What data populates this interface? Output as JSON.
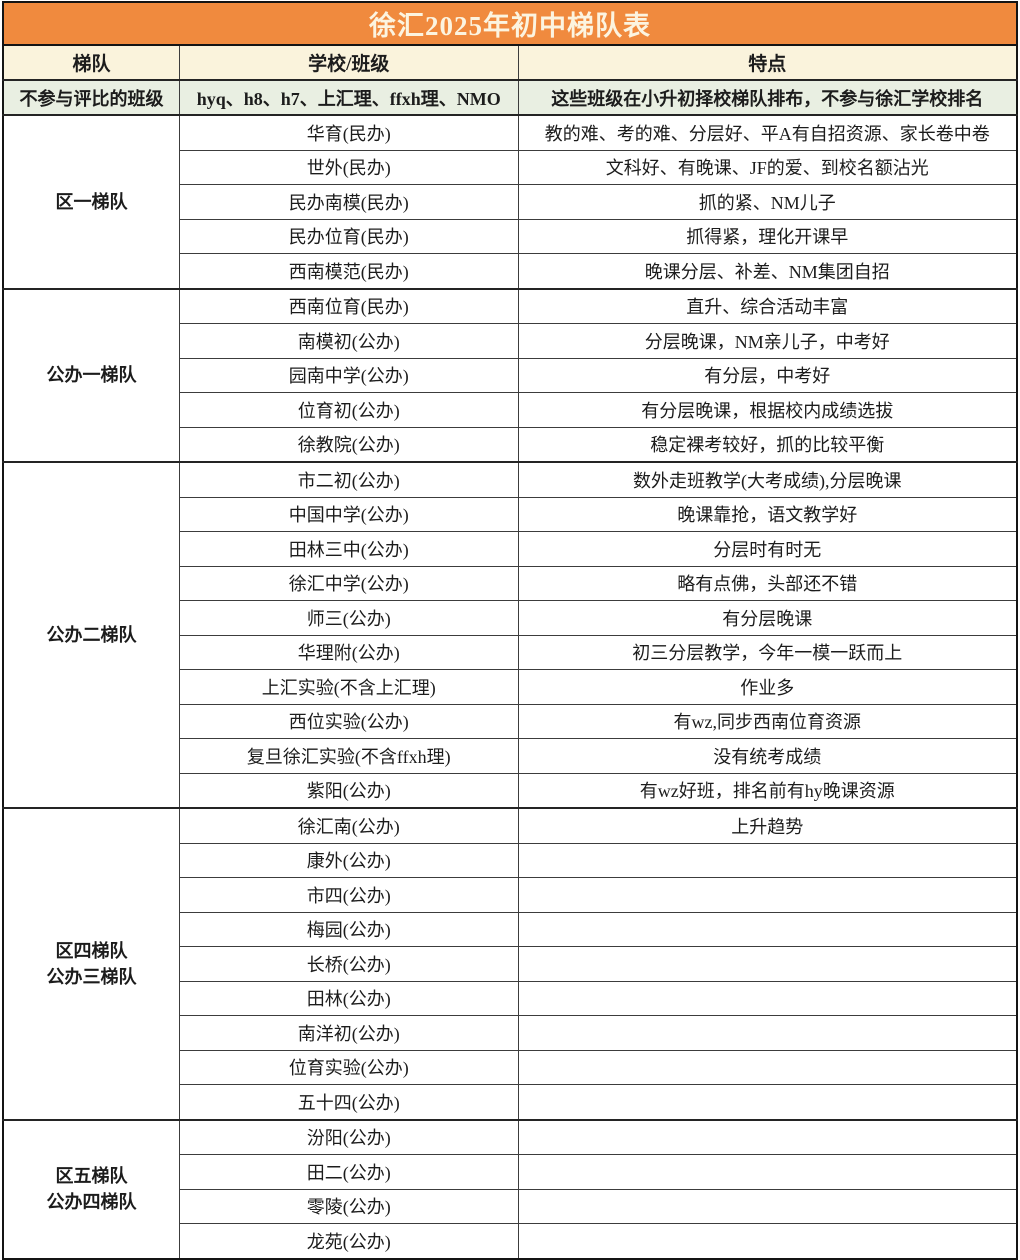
{
  "title": "徐汇2025年初中梯队表",
  "colors": {
    "title_bg": "#F08A3E",
    "title_text": "#FCF4E0",
    "header_bg": "#FAF3DC",
    "special_row_bg": "#E9EFE2",
    "body_bg": "#FFFFFF",
    "border": "#3C3C3C"
  },
  "columns": [
    "梯队",
    "学校/班级",
    "特点"
  ],
  "special_row": {
    "tier": "不参与评比的班级",
    "school": "hyq、h8、h7、上汇理、ffxh理、NMO",
    "feature": "这些班级在小升初择校梯队排布，不参与徐汇学校排名"
  },
  "groups": [
    {
      "tier": "区一梯队",
      "rows": [
        [
          "华育(民办)",
          "教的难、考的难、分层好、平A有自招资源、家长卷中卷"
        ],
        [
          "世外(民办)",
          "文科好、有晚课、JF的爱、到校名额沾光"
        ],
        [
          "民办南模(民办)",
          "抓的紧、NM儿子"
        ],
        [
          "民办位育(民办)",
          "抓得紧，理化开课早"
        ],
        [
          "西南模范(民办)",
          "晚课分层、补差、NM集团自招"
        ]
      ]
    },
    {
      "tier": "公办一梯队",
      "rows": [
        [
          "西南位育(民办)",
          "直升、综合活动丰富"
        ],
        [
          "南模初(公办)",
          "分层晚课，NM亲儿子，中考好"
        ],
        [
          "园南中学(公办)",
          "有分层，中考好"
        ],
        [
          "位育初(公办)",
          "有分层晚课，根据校内成绩选拔"
        ],
        [
          "徐教院(公办)",
          "稳定裸考较好，抓的比较平衡"
        ]
      ]
    },
    {
      "tier": "公办二梯队",
      "rows": [
        [
          "市二初(公办)",
          "数外走班教学(大考成绩),分层晚课"
        ],
        [
          "中国中学(公办)",
          "晚课靠抢，语文教学好"
        ],
        [
          "田林三中(公办)",
          "分层时有时无"
        ],
        [
          "徐汇中学(公办)",
          "略有点佛，头部还不错"
        ],
        [
          "师三(公办)",
          "有分层晚课"
        ],
        [
          "华理附(公办)",
          "初三分层教学，今年一模一跃而上"
        ],
        [
          "上汇实验(不含上汇理)",
          "作业多"
        ],
        [
          "西位实验(公办)",
          "有wz,同步西南位育资源"
        ],
        [
          "复旦徐汇实验(不含ffxh理)",
          "没有统考成绩"
        ],
        [
          "紫阳(公办)",
          "有wz好班，排名前有hy晚课资源"
        ]
      ]
    },
    {
      "tier": "区四梯队\n公办三梯队",
      "rows": [
        [
          "徐汇南(公办)",
          "上升趋势"
        ],
        [
          "康外(公办)",
          ""
        ],
        [
          "市四(公办)",
          ""
        ],
        [
          "梅园(公办)",
          ""
        ],
        [
          "长桥(公办)",
          ""
        ],
        [
          "田林(公办)",
          ""
        ],
        [
          "南洋初(公办)",
          ""
        ],
        [
          "位育实验(公办)",
          ""
        ],
        [
          "五十四(公办)",
          ""
        ]
      ]
    },
    {
      "tier": "区五梯队\n公办四梯队",
      "rows": [
        [
          "汾阳(公办)",
          ""
        ],
        [
          "田二(公办)",
          ""
        ],
        [
          "零陵(公办)",
          ""
        ],
        [
          "龙苑(公办)",
          ""
        ]
      ]
    }
  ]
}
